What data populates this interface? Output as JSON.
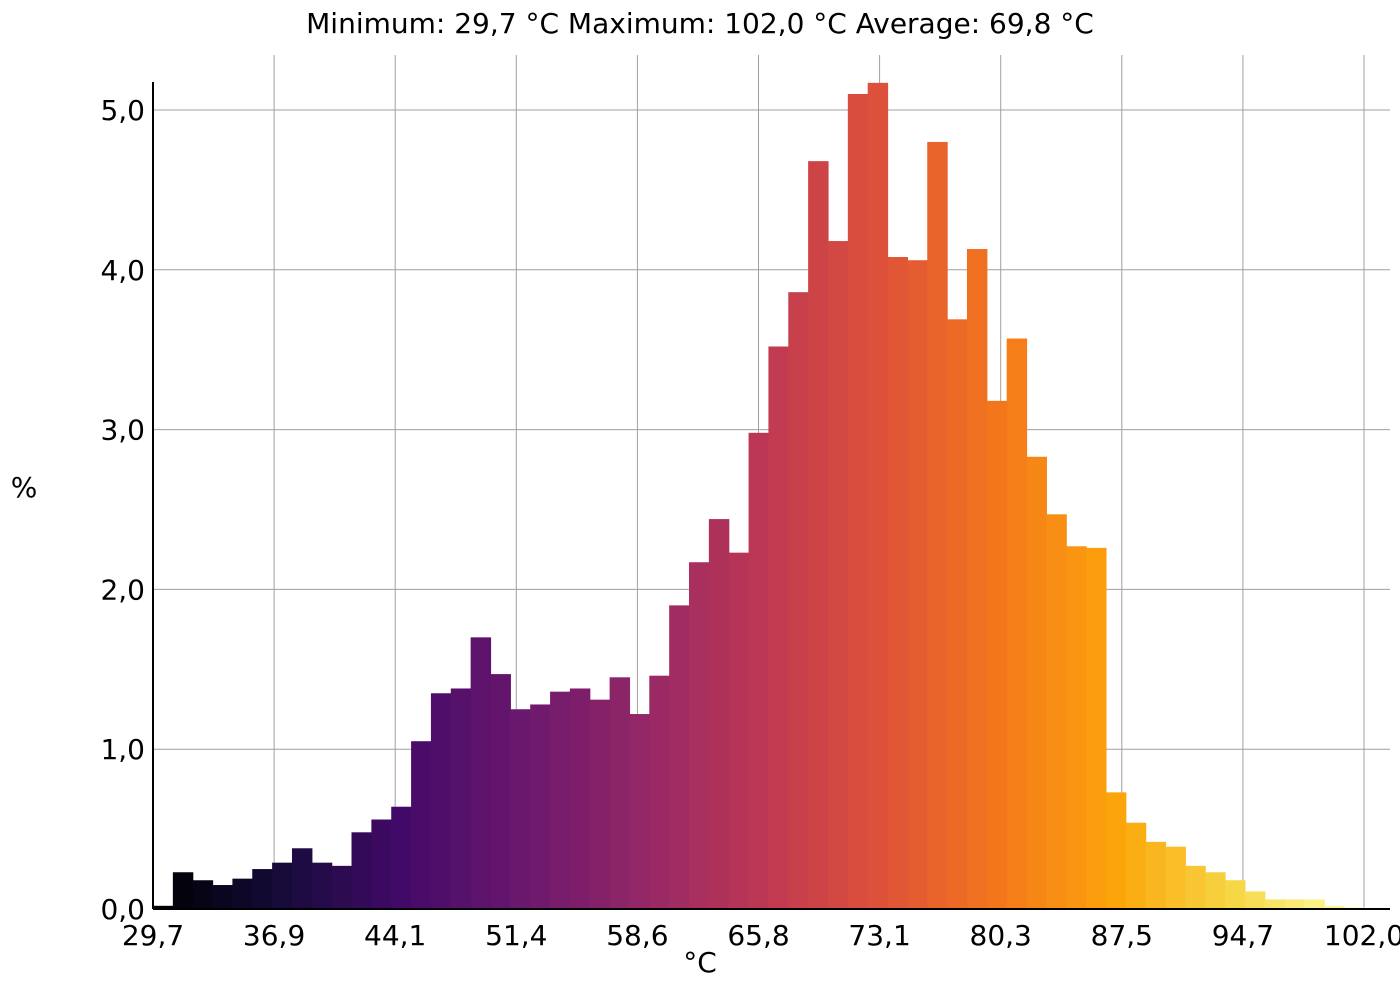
{
  "chart_data": {
    "type": "bar",
    "title": "Minimum: 29,7 °C Maximum: 102,0 °C Average: 69,8 °C",
    "xlabel": "°C",
    "ylabel": "%",
    "xlim": [
      29.7,
      102.0
    ],
    "ylim": [
      0,
      5.0
    ],
    "x_ticks": [
      "29,7",
      "36,9",
      "44,1",
      "51,4",
      "58,6",
      "65,8",
      "73,1",
      "80,3",
      "87,5",
      "94,7",
      "102,0"
    ],
    "y_ticks": [
      "0,0",
      "1,0",
      "2,0",
      "3,0",
      "4,0",
      "5,0"
    ],
    "grid": true,
    "colormap": "inferno",
    "values": [
      0.02,
      0.23,
      0.18,
      0.15,
      0.19,
      0.25,
      0.29,
      0.38,
      0.29,
      0.27,
      0.48,
      0.56,
      0.64,
      1.05,
      1.35,
      1.38,
      1.7,
      1.47,
      1.25,
      1.28,
      1.36,
      1.38,
      1.31,
      1.45,
      1.22,
      1.46,
      1.9,
      2.17,
      2.44,
      2.23,
      2.98,
      3.52,
      3.86,
      4.68,
      4.18,
      5.1,
      5.17,
      4.08,
      4.06,
      4.8,
      3.69,
      4.13,
      3.18,
      3.57,
      2.83,
      2.47,
      2.27,
      2.26,
      0.73,
      0.54,
      0.42,
      0.39,
      0.27,
      0.23,
      0.18,
      0.11,
      0.06,
      0.06,
      0.06,
      0.02,
      0.01
    ]
  }
}
